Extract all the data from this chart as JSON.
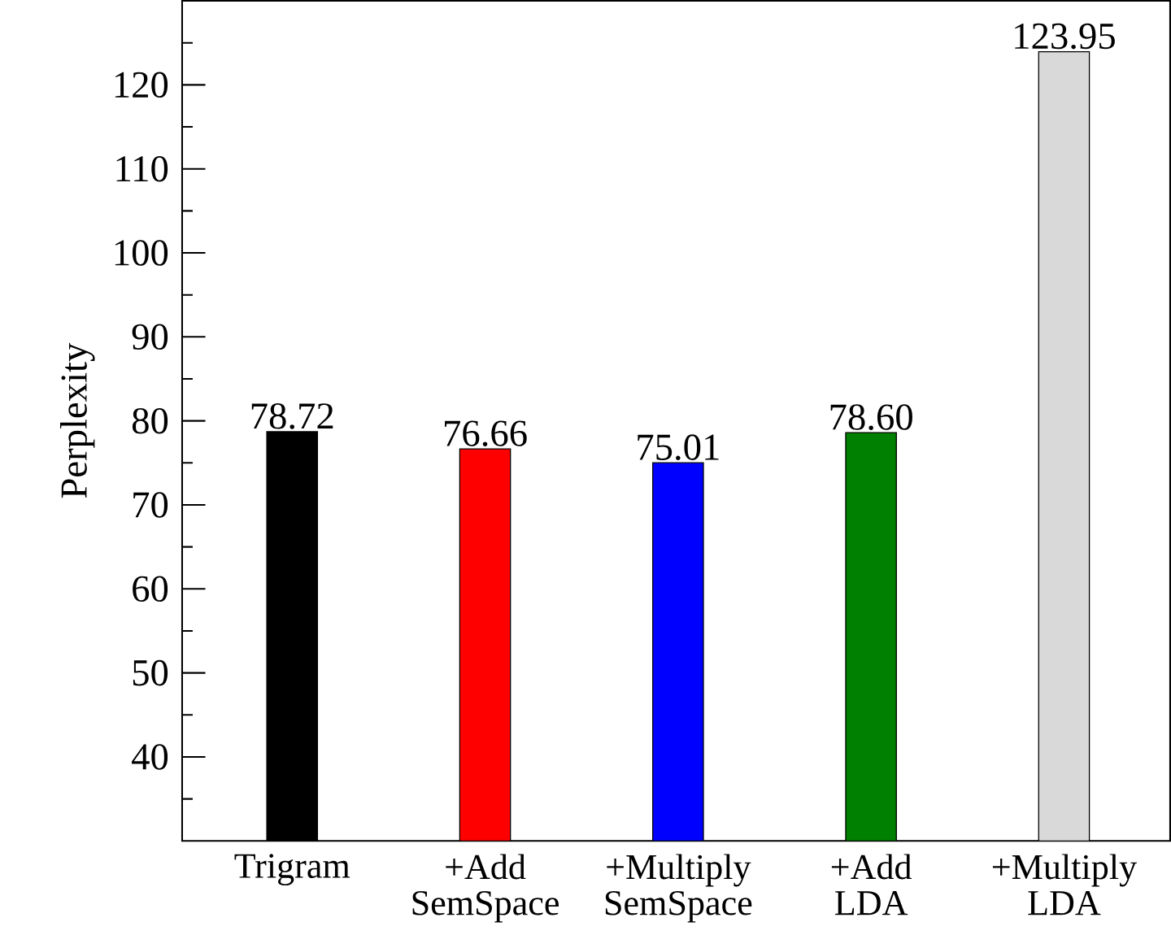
{
  "chart_data": {
    "type": "bar",
    "ylabel": "Perplexity",
    "categories": [
      "Trigram",
      "+Add SemSpace",
      "+Multiply SemSpace",
      "+Add LDA",
      "+Multiply LDA"
    ],
    "values": [
      78.72,
      76.66,
      75.01,
      78.6,
      123.95
    ],
    "value_labels": [
      "78.72",
      "76.66",
      "75.01",
      "78.60",
      "123.95"
    ],
    "colors": [
      "#000000",
      "#ff0000",
      "#0000ff",
      "#008000",
      "#d9d9d9"
    ],
    "ylim": [
      30,
      130
    ],
    "yticks": [
      {
        "value": 35,
        "label": null
      },
      40,
      {
        "value": 45,
        "label": null
      },
      50,
      {
        "value": 55,
        "label": null
      },
      60,
      {
        "value": 65,
        "label": null
      },
      70,
      {
        "value": 75,
        "label": null
      },
      80,
      {
        "value": 85,
        "label": null
      },
      90,
      {
        "value": 95,
        "label": null
      },
      100,
      {
        "value": 105,
        "label": null
      },
      110,
      {
        "value": 115,
        "label": null
      },
      120,
      {
        "value": 125,
        "label": null
      }
    ],
    "grid": false
  }
}
